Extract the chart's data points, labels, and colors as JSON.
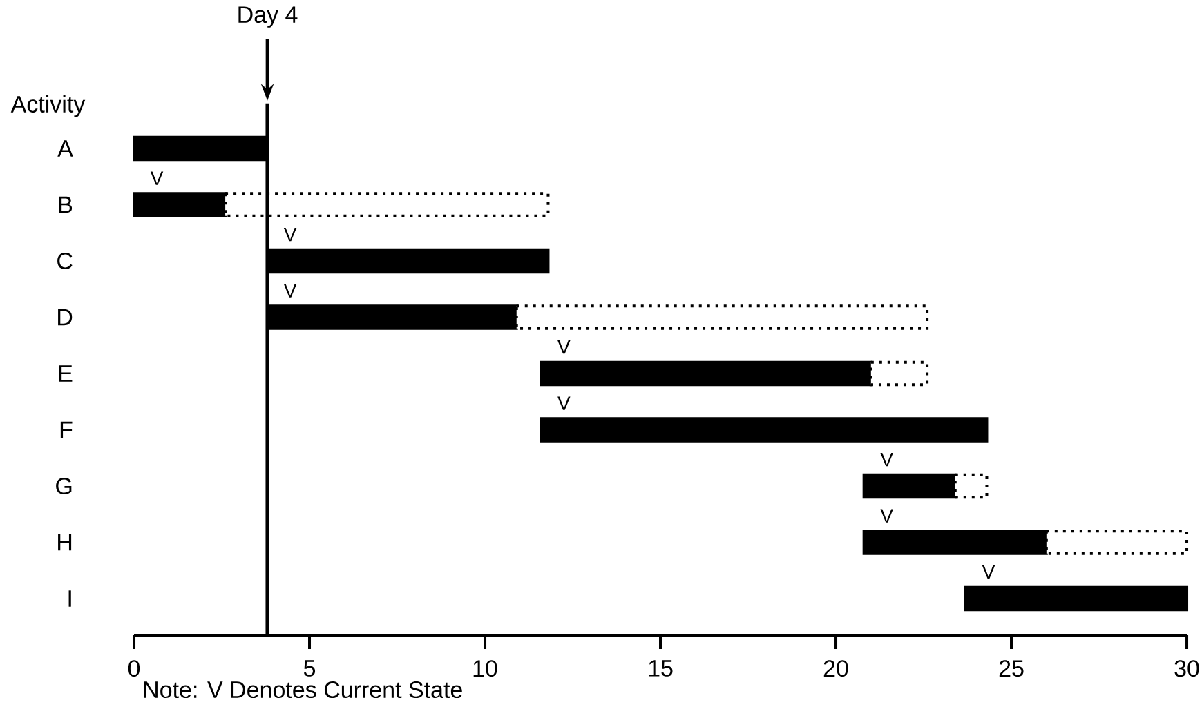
{
  "chart_data": {
    "type": "bar",
    "orientation": "horizontal",
    "ylabel": "Activity",
    "categories": [
      "A",
      "B",
      "C",
      "D",
      "E",
      "F",
      "G",
      "H",
      "I"
    ],
    "series": [
      {
        "color": "#000000",
        "line_style": "solid",
        "base": [
          0,
          0,
          3.8,
          3.8,
          11.6,
          11.6,
          20.8,
          20.8,
          23.7
        ],
        "values": [
          3.8,
          2.6,
          8.0,
          7.1,
          9.4,
          12.7,
          2.6,
          5.2,
          6.3
        ],
        "value_labels": [
          null,
          "V",
          "V",
          "V",
          "V",
          "V",
          "V",
          "V",
          "V"
        ]
      },
      {
        "color": "#ffffff",
        "line_style": "dotted",
        "base": [
          null,
          2.6,
          null,
          10.9,
          21.0,
          null,
          23.4,
          26.0,
          null
        ],
        "values": [
          null,
          9.2,
          null,
          11.7,
          1.6,
          null,
          0.9,
          4.0,
          null
        ]
      }
    ],
    "xlim": [
      0,
      30
    ],
    "xticks": [
      0,
      5,
      10,
      15,
      20,
      25,
      30
    ],
    "ref_lines": [
      {
        "axis": "x",
        "value": 3.8,
        "label": "Day 4",
        "color": "#000000",
        "line_style": "solid"
      }
    ],
    "annotations": [
      "Note: V Denotes Current State"
    ]
  }
}
